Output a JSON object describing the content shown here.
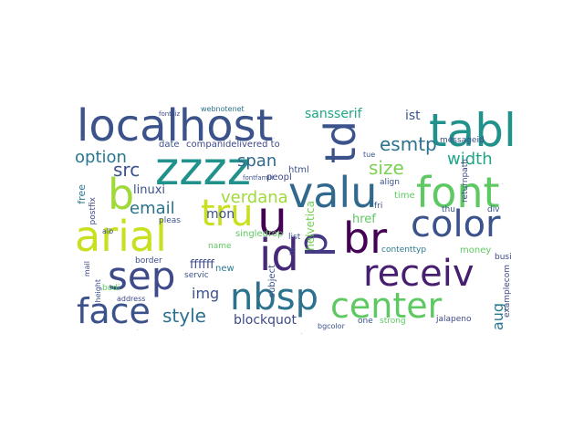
{
  "word_cloud": {
    "words": [
      {
        "text": "localhost",
        "color": "#3b528b"
      },
      {
        "text": "tabl",
        "color": "#21918c"
      },
      {
        "text": "zzzz",
        "color": "#21918c"
      },
      {
        "text": "valu",
        "color": "#31688e"
      },
      {
        "text": "font",
        "color": "#5ec962"
      },
      {
        "text": "td",
        "color": "#3b528b"
      },
      {
        "text": "tru",
        "color": "#c8e020"
      },
      {
        "text": "u",
        "color": "#440154"
      },
      {
        "text": "arial",
        "color": "#c8e020"
      },
      {
        "text": "b",
        "color": "#a0da39"
      },
      {
        "text": "id",
        "color": "#482878"
      },
      {
        "text": "p",
        "color": "#443983"
      },
      {
        "text": "br",
        "color": "#440154"
      },
      {
        "text": "color",
        "color": "#3b528b"
      },
      {
        "text": "sep",
        "color": "#3e4a89"
      },
      {
        "text": "receiv",
        "color": "#481f70"
      },
      {
        "text": "face",
        "color": "#3b528b"
      },
      {
        "text": "nbsp",
        "color": "#2c728e"
      },
      {
        "text": "center",
        "color": "#5ec962"
      },
      {
        "text": "option",
        "color": "#2a788e"
      },
      {
        "text": "src",
        "color": "#3b528b"
      },
      {
        "text": "span",
        "color": "#31688e"
      },
      {
        "text": "size",
        "color": "#7ad151"
      },
      {
        "text": "width",
        "color": "#20a486"
      },
      {
        "text": "esmtp",
        "color": "#2c728e"
      },
      {
        "text": "verdana",
        "color": "#a0da39"
      },
      {
        "text": "email",
        "color": "#2c728e"
      },
      {
        "text": "style",
        "color": "#2c728e"
      },
      {
        "text": "img",
        "color": "#3b528b"
      },
      {
        "text": "mon",
        "color": "#3b528b"
      },
      {
        "text": "aug",
        "color": "#2a788e"
      },
      {
        "text": "blockquot",
        "color": "#3e4a89"
      },
      {
        "text": "sansserif",
        "color": "#20a486"
      },
      {
        "text": "ist",
        "color": "#3b528b"
      },
      {
        "text": "linuxi",
        "color": "#3b528b"
      },
      {
        "text": "href",
        "color": "#5ec962"
      },
      {
        "text": "helvetica",
        "color": "#75d054"
      },
      {
        "text": "ffffff",
        "color": "#3e4a89"
      },
      {
        "text": "webnotenet",
        "color": "#2c728e"
      },
      {
        "text": "fontsiz",
        "color": "#3e4a89"
      },
      {
        "text": "companidelivered to",
        "color": "#3e4a89"
      },
      {
        "text": "date",
        "color": "#3b528b"
      },
      {
        "text": "peopl",
        "color": "#3e4a89"
      },
      {
        "text": "html",
        "color": "#3b528b"
      },
      {
        "text": "time",
        "color": "#5ec962"
      },
      {
        "text": "messageid",
        "color": "#3b528b"
      },
      {
        "text": "contenttyp",
        "color": "#2a788e"
      },
      {
        "text": "jalapeno",
        "color": "#3e4a89"
      },
      {
        "text": "strong",
        "color": "#5ec962"
      },
      {
        "text": "one",
        "color": "#3b528b"
      },
      {
        "text": "bgcolor",
        "color": "#3b528b"
      },
      {
        "text": "free",
        "color": "#2a788e"
      },
      {
        "text": "postfix",
        "color": "#3e4a89"
      },
      {
        "text": "pleas",
        "color": "#3b528b"
      },
      {
        "text": "alb",
        "color": "#3b528b"
      },
      {
        "text": "border",
        "color": "#3e4a89"
      },
      {
        "text": "servic",
        "color": "#3b528b"
      },
      {
        "text": "new",
        "color": "#2a788e"
      },
      {
        "text": "name",
        "color": "#5ec962"
      },
      {
        "text": "bodi",
        "color": "#5ec962"
      },
      {
        "text": "mail",
        "color": "#3e4a89"
      },
      {
        "text": "height",
        "color": "#3b528b"
      },
      {
        "text": "address",
        "color": "#3e4a89"
      },
      {
        "text": "subject",
        "color": "#3b528b"
      },
      {
        "text": "list",
        "color": "#3b528b"
      },
      {
        "text": "nt",
        "color": "#3e4a89"
      },
      {
        "text": "singledrop",
        "color": "#5ec962"
      },
      {
        "text": "fontfamili",
        "color": "#3b528b"
      },
      {
        "text": "money",
        "color": "#5ec962"
      },
      {
        "text": "thu",
        "color": "#3b528b"
      },
      {
        "text": "fri",
        "color": "#3b528b"
      },
      {
        "text": "div",
        "color": "#3b528b"
      },
      {
        "text": "busi",
        "color": "#3e4a89"
      },
      {
        "text": "examplecom",
        "color": "#3e4a89"
      },
      {
        "text": "returnpath",
        "color": "#3e4a89"
      },
      {
        "text": "tue",
        "color": "#3b528b"
      },
      {
        "text": "align",
        "color": "#3b528b"
      },
      {
        "text": "mime",
        "color": "#3e4a89"
      }
    ]
  }
}
